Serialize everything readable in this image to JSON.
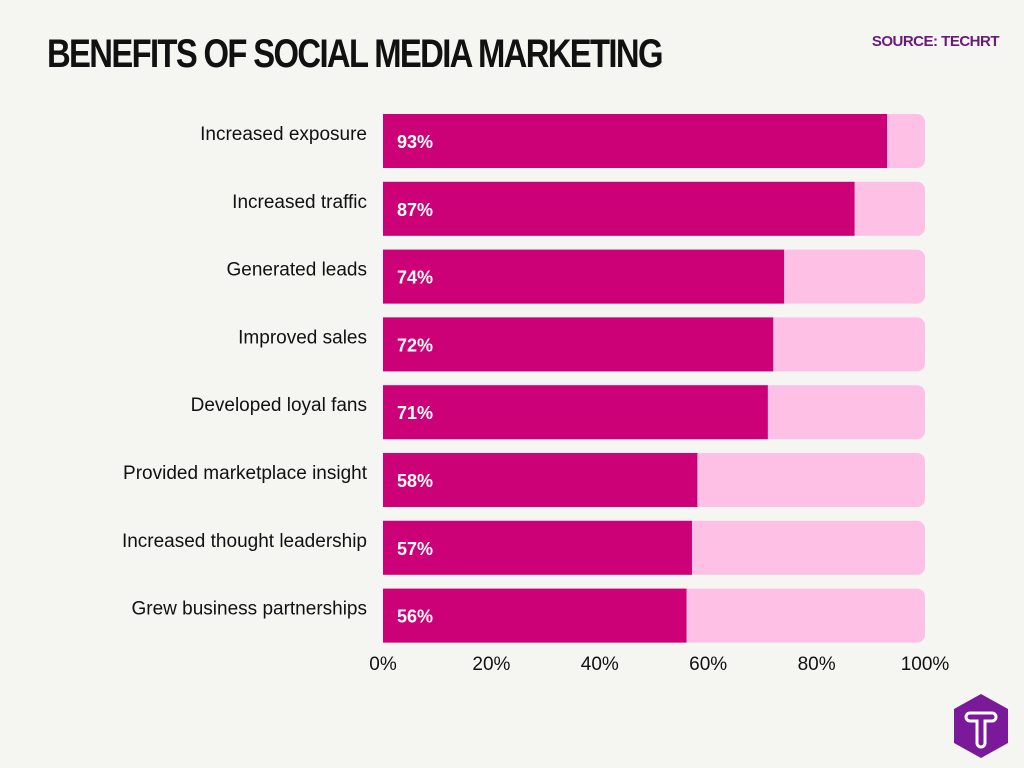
{
  "chart_data": {
    "type": "bar",
    "orientation": "horizontal",
    "stacked_track": true,
    "title": "BENEFITS OF SOCIAL MEDIA MARKETING",
    "source": "SOURCE: TECHRT",
    "categories": [
      "Increased exposure",
      "Increased traffic",
      "Generated leads",
      "Improved sales",
      "Developed loyal fans",
      "Provided marketplace insight",
      "Increased thought leadership",
      "Grew business partnerships"
    ],
    "values": [
      93,
      87,
      74,
      72,
      71,
      58,
      57,
      56
    ],
    "data_labels": [
      "93%",
      "87%",
      "74%",
      "72%",
      "71%",
      "58%",
      "57%",
      "56%"
    ],
    "xlim": [
      0,
      100
    ],
    "x_ticks": [
      0,
      20,
      40,
      60,
      80,
      100
    ],
    "x_tick_labels": [
      "0%",
      "20%",
      "40%",
      "60%",
      "80%",
      "100%"
    ],
    "grid": false,
    "colors": {
      "bar": "#cc0077",
      "track": "#ffc0e6",
      "title": "#111111",
      "source": "#6a1a7a",
      "logo": "#7a1a9a"
    }
  },
  "logo": {
    "icon": "techrt-t-logo",
    "letter": "T"
  }
}
